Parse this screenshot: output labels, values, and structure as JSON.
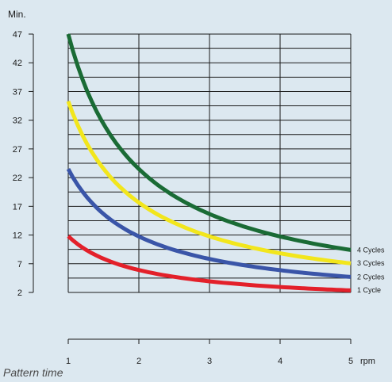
{
  "caption": "Pattern time",
  "chart_data": {
    "type": "line",
    "ylabel": "Min.",
    "xlabel": "rpm",
    "x_ticks": [
      1,
      2,
      3,
      4,
      5
    ],
    "y_ticks": [
      2,
      7,
      12,
      17,
      22,
      27,
      32,
      37,
      42,
      47
    ],
    "xlim": [
      1,
      5
    ],
    "ylim": [
      2,
      47
    ],
    "grid": true,
    "series": [
      {
        "name": "4 Cycles",
        "color": "#1a6b35",
        "x": [
          1,
          1.25,
          1.5,
          2,
          2.5,
          3,
          3.5,
          4,
          4.5,
          5
        ],
        "values": [
          47,
          37.6,
          31.3,
          23.5,
          18.8,
          15.7,
          13.4,
          11.8,
          10.4,
          9.4
        ]
      },
      {
        "name": "3 Cycles",
        "color": "#f2e61c",
        "x": [
          1,
          1.25,
          1.5,
          2,
          2.5,
          3,
          3.5,
          4,
          4.5,
          5
        ],
        "values": [
          35.3,
          28.2,
          23.5,
          17.6,
          14.1,
          11.8,
          10.1,
          8.8,
          7.8,
          7.1
        ]
      },
      {
        "name": "2 Cycles",
        "color": "#3a55a8",
        "x": [
          1,
          1.25,
          1.5,
          2,
          2.5,
          3,
          3.5,
          4,
          4.5,
          5
        ],
        "values": [
          23.5,
          18.8,
          15.7,
          11.8,
          9.4,
          7.8,
          6.7,
          5.9,
          5.2,
          4.7
        ]
      },
      {
        "name": "1 Cycle",
        "color": "#e3202a",
        "x": [
          1,
          1.25,
          1.5,
          2,
          2.5,
          3,
          3.5,
          4,
          4.5,
          5
        ],
        "values": [
          11.8,
          9.4,
          7.8,
          5.9,
          4.7,
          3.9,
          3.4,
          2.9,
          2.6,
          2.4
        ]
      }
    ]
  }
}
